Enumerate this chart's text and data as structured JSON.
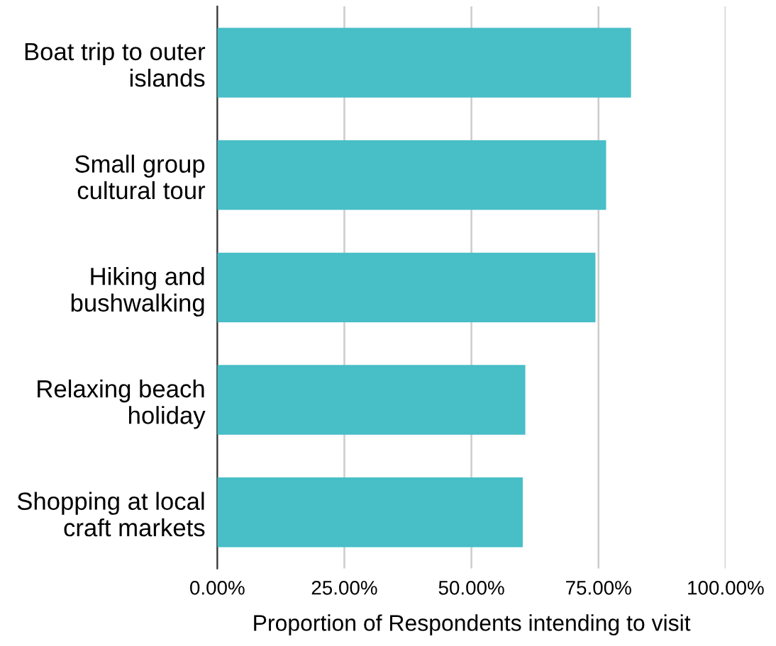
{
  "chart_data": {
    "type": "bar",
    "orientation": "horizontal",
    "xlabel": "Proportion of Respondents intending to visit",
    "categories": [
      "Boat trip to outer islands",
      "Small group cultural tour",
      "Hiking and bushwalking",
      "Relaxing beach holiday",
      "Shopping at local craft markets"
    ],
    "values": [
      81.4,
      76.5,
      74.4,
      60.6,
      60.1
    ],
    "color": "#48bec7",
    "xlim": [
      0,
      100
    ],
    "xticks": [
      {
        "value": 0,
        "label": "0.00%"
      },
      {
        "value": 25,
        "label": "25.00%"
      },
      {
        "value": 50,
        "label": "50.00%"
      },
      {
        "value": 75,
        "label": "75.00%"
      },
      {
        "value": 100,
        "label": "100.00%"
      }
    ],
    "grid": "x"
  }
}
